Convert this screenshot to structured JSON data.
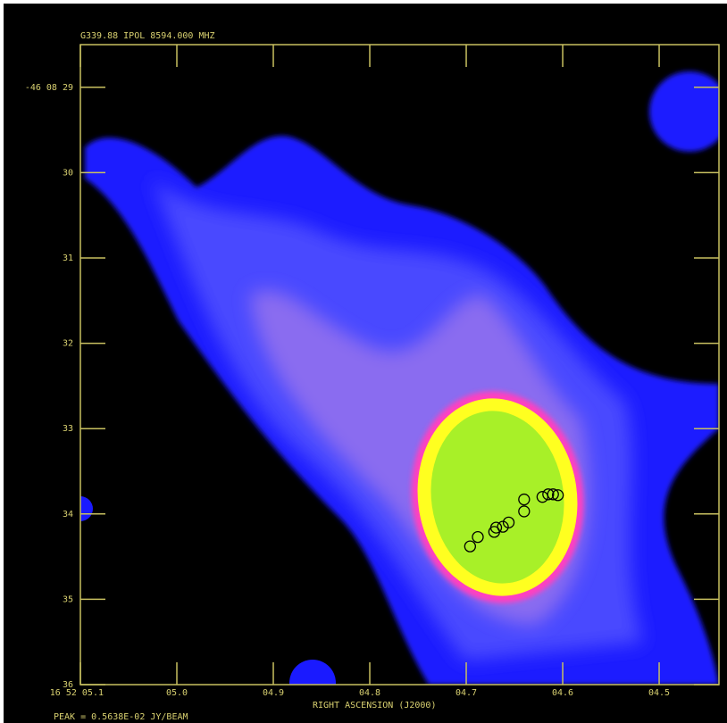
{
  "chart_data": {
    "type": "scatter",
    "title": "G339.88    IPOL    8594.000 MHZ",
    "x_label": "RIGHT ASCENSION (J2000)",
    "footer": "PEAK =  0.5638E-02 JY/BEAM",
    "xlim": [
      5.1,
      4.438
    ],
    "ylim": [
      36,
      28.5
    ],
    "xticks": [
      {
        "value": 5.1,
        "label": "16 52 05.1"
      },
      {
        "value": 5.0,
        "label": "05.0"
      },
      {
        "value": 4.9,
        "label": "04.9"
      },
      {
        "value": 4.8,
        "label": "04.8"
      },
      {
        "value": 4.7,
        "label": "04.7"
      },
      {
        "value": 4.6,
        "label": "04.6"
      },
      {
        "value": 4.5,
        "label": "04.5"
      }
    ],
    "yticks": [
      {
        "value": 29,
        "label": "-46 08 29"
      },
      30,
      31,
      32,
      33,
      34,
      35,
      36
    ],
    "marker_color": "#000000",
    "x": [
      4.696,
      4.688,
      4.671,
      4.669,
      4.662,
      4.656,
      4.64,
      4.64,
      4.621,
      4.615,
      4.61,
      4.605
    ],
    "values": [
      34.38,
      34.27,
      34.21,
      34.16,
      34.15,
      34.1,
      33.97,
      33.83,
      33.8,
      33.77,
      33.77,
      33.78
    ]
  }
}
